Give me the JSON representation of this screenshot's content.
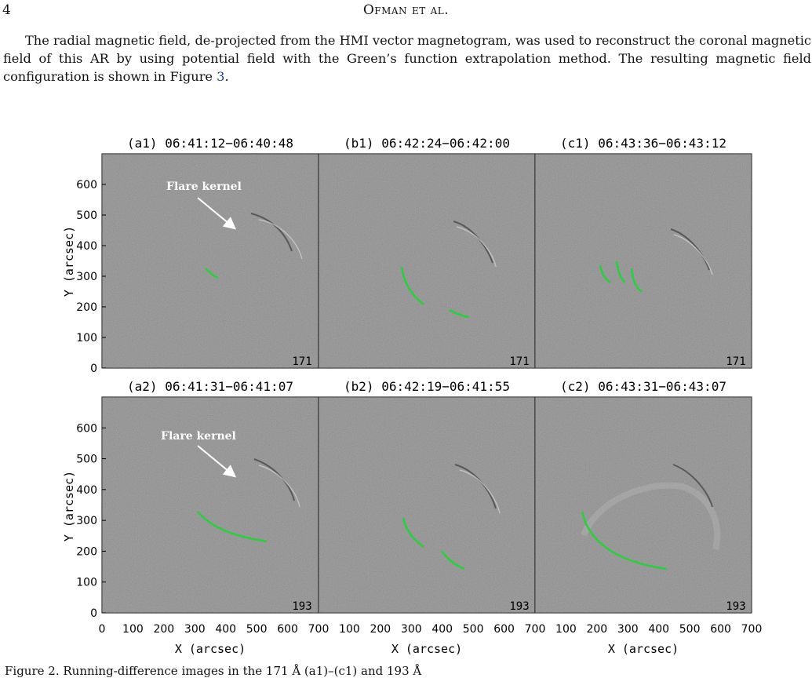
{
  "page": {
    "number": "4",
    "running_head": "Ofman et al."
  },
  "paragraph": {
    "before_ref": "The radial magnetic field, de-projected from the HMI vector magnetogram, was used to reconstruct the coronal magnetic field of this AR by using potential field with the Green’s function extrapolation method. The resulting magnetic field configuration is shown in Figure ",
    "ref": "3",
    "after_ref": "."
  },
  "figure": {
    "panels": [
      {
        "id": "a1",
        "title": "(a1) 06:41:12−06:40:48",
        "channel": "171",
        "annotation": "Flare kernel"
      },
      {
        "id": "b1",
        "title": "(b1) 06:42:24−06:42:00",
        "channel": "171"
      },
      {
        "id": "c1",
        "title": "(c1) 06:43:36−06:43:12",
        "channel": "171"
      },
      {
        "id": "a2",
        "title": "(a2) 06:41:31−06:41:07",
        "channel": "193",
        "annotation": "Flare kernel"
      },
      {
        "id": "b2",
        "title": "(b2) 06:42:19−06:41:55",
        "channel": "193"
      },
      {
        "id": "c2",
        "title": "(c2) 06:43:31−06:43:07",
        "channel": "193"
      }
    ],
    "y_axis_label": "Y (arcsec)",
    "x_axis_label": "X (arcsec)",
    "y_ticks": [
      "0",
      "100",
      "200",
      "300",
      "400",
      "500",
      "600"
    ],
    "x_ticks_first": [
      "0",
      "100",
      "200",
      "300",
      "400",
      "500",
      "600"
    ],
    "x_ticks_rest": [
      "100",
      "200",
      "300",
      "400",
      "500",
      "600"
    ],
    "x_tick_shared": "700",
    "x_tick_last": "700",
    "colors": {
      "front": "#27d13b",
      "image_bg": "#868686",
      "arrow": "#ffffff"
    }
  },
  "caption_partial": "Figure 2. Running-difference images in the 171 Å (a1)–(c1) and 193 Å"
}
